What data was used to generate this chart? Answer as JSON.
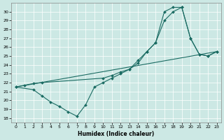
{
  "xlabel": "Humidex (Indice chaleur)",
  "bg_color": "#cce8e4",
  "line_color": "#1a6b62",
  "xlim": [
    -0.5,
    23.5
  ],
  "ylim": [
    17.5,
    31.0
  ],
  "xticks": [
    0,
    1,
    2,
    3,
    4,
    5,
    6,
    7,
    8,
    9,
    10,
    11,
    12,
    13,
    14,
    15,
    16,
    17,
    18,
    19,
    20,
    21,
    22,
    23
  ],
  "yticks": [
    18,
    19,
    20,
    21,
    22,
    23,
    24,
    25,
    26,
    27,
    28,
    29,
    30
  ],
  "line1_x": [
    0,
    1,
    2,
    3,
    10,
    11,
    12,
    13,
    14,
    15,
    16,
    17,
    18,
    19,
    20,
    21,
    22,
    23
  ],
  "line1_y": [
    21.5,
    21.7,
    21.9,
    22.0,
    22.5,
    22.8,
    23.2,
    23.5,
    24.2,
    25.5,
    26.5,
    29.0,
    30.0,
    30.5,
    27.0,
    25.2,
    25.0,
    25.5
  ],
  "line2_x": [
    0,
    23
  ],
  "line2_y": [
    21.5,
    25.5
  ],
  "line3_x": [
    0,
    2,
    3,
    4,
    5,
    6,
    7,
    8,
    9,
    10,
    11,
    12,
    13,
    14,
    15,
    16,
    17,
    18,
    19,
    20,
    21,
    22,
    23
  ],
  "line3_y": [
    21.5,
    21.2,
    20.5,
    19.8,
    19.3,
    18.7,
    18.2,
    19.5,
    21.5,
    22.0,
    22.5,
    23.0,
    23.5,
    24.5,
    25.5,
    26.5,
    30.0,
    30.5,
    30.5,
    27.0,
    25.2,
    25.0,
    25.5
  ]
}
